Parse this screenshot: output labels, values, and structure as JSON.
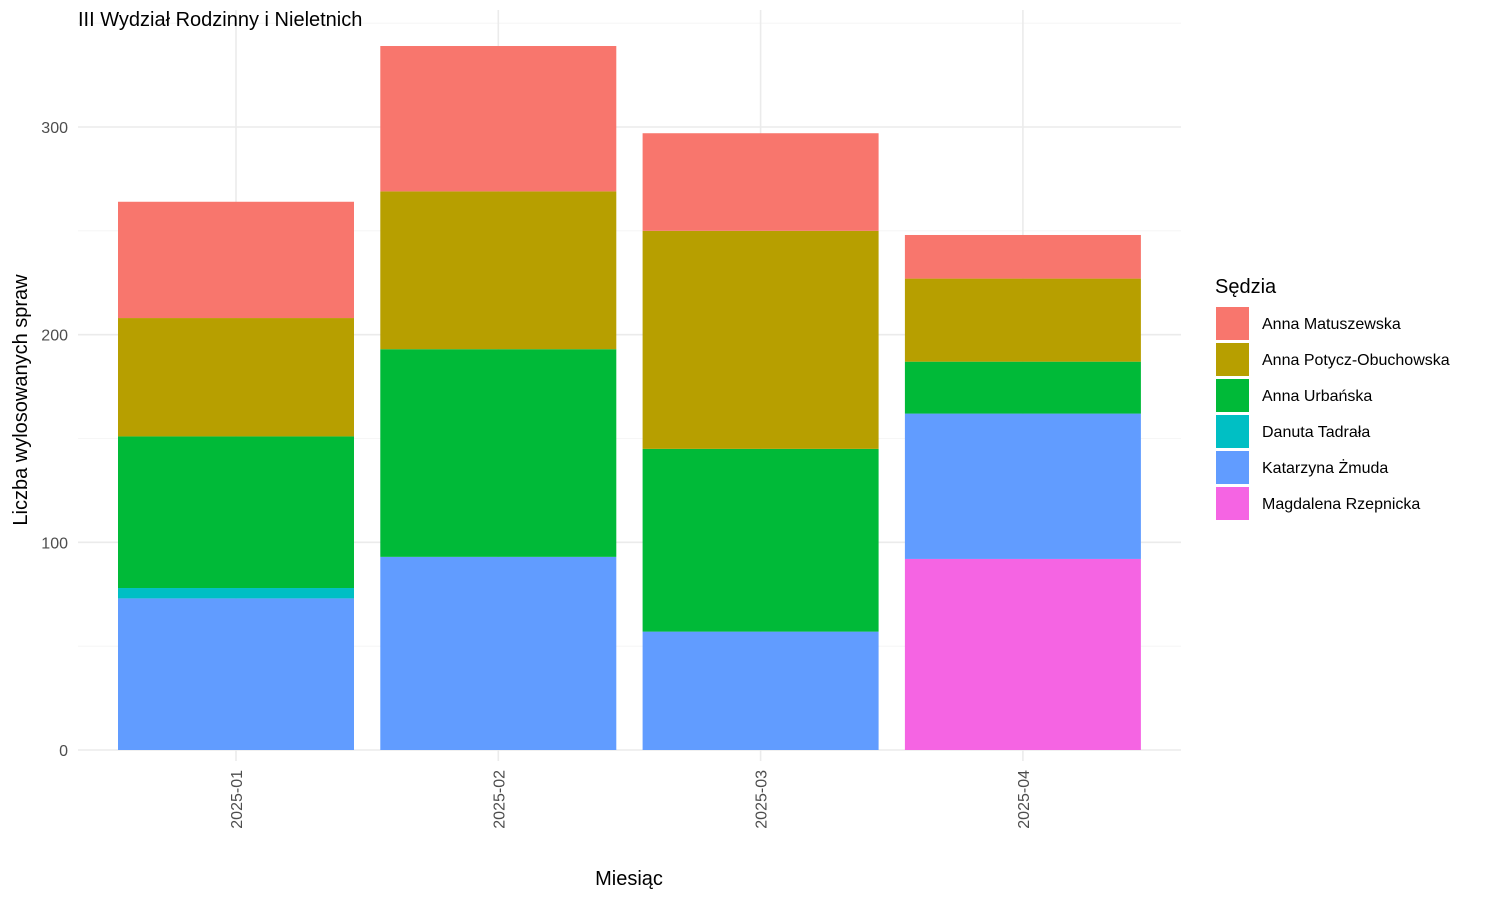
{
  "chart_data": {
    "type": "bar",
    "stacked": true,
    "title": "III Wydział Rodzinny i Nieletnich",
    "xlabel": "Miesiąc",
    "ylabel": "Liczba wylosowanych spraw",
    "categories": [
      "2025-01",
      "2025-02",
      "2025-03",
      "2025-04"
    ],
    "ylim": [
      0,
      355
    ],
    "yticks": [
      0,
      100,
      200,
      300
    ],
    "grid": true,
    "legend": {
      "title": "Sędzia",
      "position": "right"
    },
    "series": [
      {
        "name": "Magdalena Rzepnicka",
        "color": "#F564E3",
        "values": [
          0,
          0,
          0,
          92
        ]
      },
      {
        "name": "Katarzyna Żmuda",
        "color": "#619CFF",
        "values": [
          73,
          93,
          57,
          70
        ]
      },
      {
        "name": "Danuta Tadrała",
        "color": "#00BFC4",
        "values": [
          5,
          0,
          0,
          0
        ]
      },
      {
        "name": "Anna Urbańska",
        "color": "#00BA38",
        "values": [
          73,
          100,
          88,
          25
        ]
      },
      {
        "name": "Anna Potycz-Obuchowska",
        "color": "#B79F00",
        "values": [
          57,
          76,
          105,
          40
        ]
      },
      {
        "name": "Anna Matuszewska",
        "color": "#F8766D",
        "values": [
          56,
          70,
          47,
          21
        ]
      }
    ],
    "legend_order": [
      "Anna Matuszewska",
      "Anna Potycz-Obuchowska",
      "Anna Urbańska",
      "Danuta Tadrała",
      "Katarzyna Żmuda",
      "Magdalena Rzepnicka"
    ]
  }
}
